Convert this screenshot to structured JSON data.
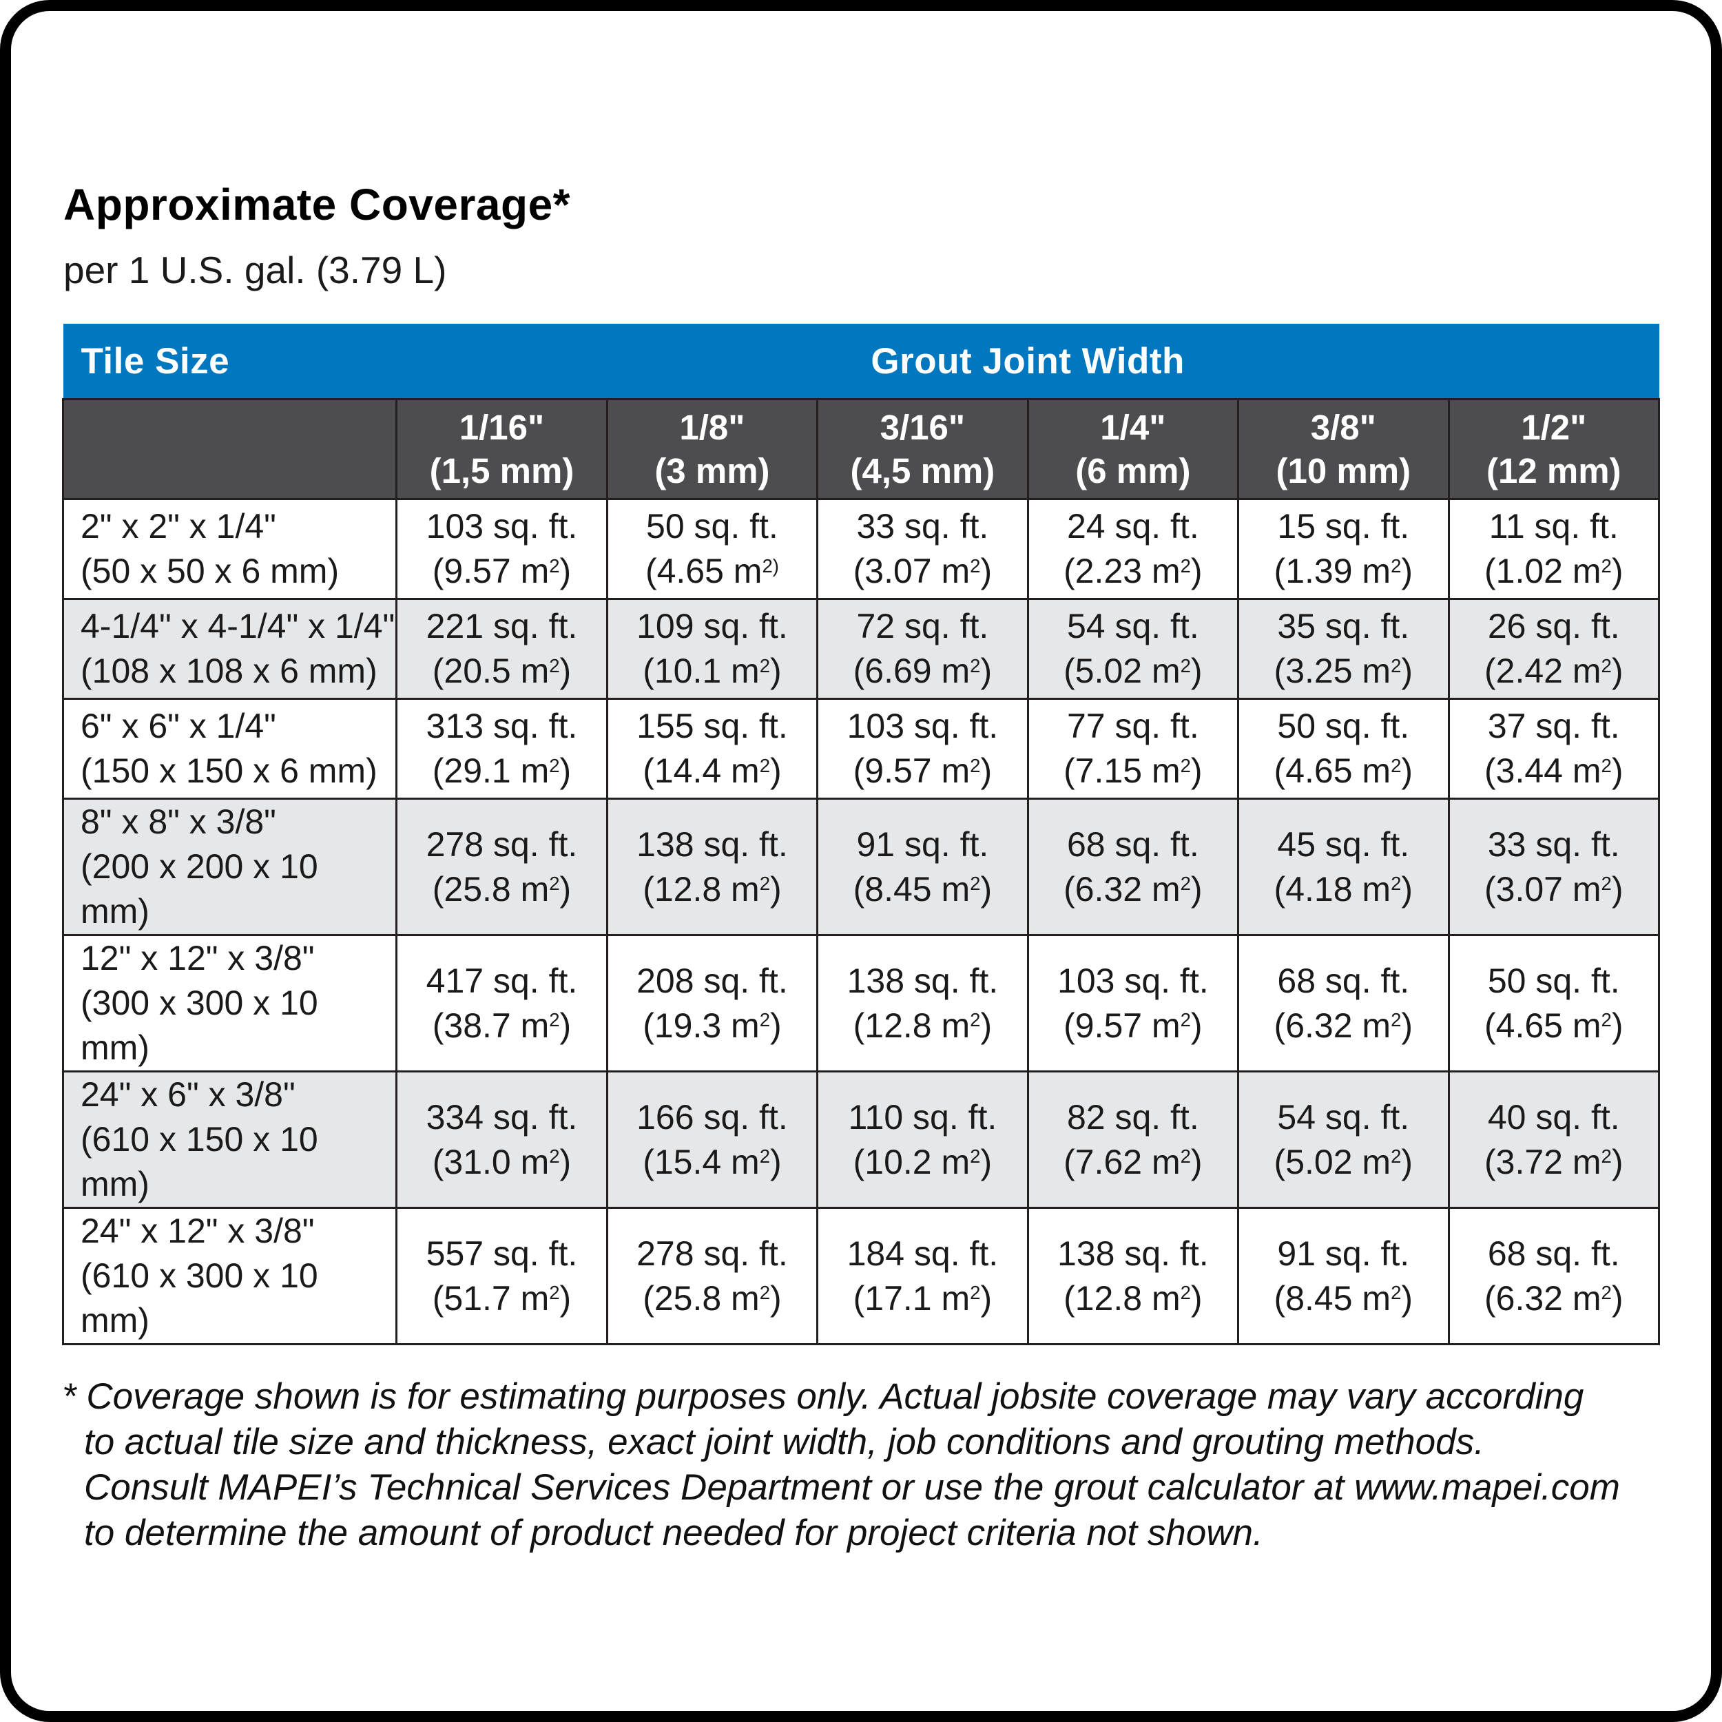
{
  "title": "Approximate Coverage*",
  "subtitle": "per 1 U.S. gal. (3.79 L)",
  "colors": {
    "header_blue": "#0077BE",
    "header_dark_gray": "#4D4D4F",
    "row_alt_gray": "#E6E7E8",
    "border_black": "#231F20"
  },
  "table": {
    "group_headers": {
      "tile_size": "Tile Size",
      "grout_joint_width": "Grout Joint Width"
    },
    "columns": [
      {
        "inch": "1/16\"",
        "mm": "(1,5 mm)"
      },
      {
        "inch": "1/8\"",
        "mm": "(3 mm)"
      },
      {
        "inch": "3/16\"",
        "mm": "(4,5 mm)"
      },
      {
        "inch": "1/4\"",
        "mm": "(6 mm)"
      },
      {
        "inch": "3/8\"",
        "mm": "(10 mm)"
      },
      {
        "inch": "1/2\"",
        "mm": "(12 mm)"
      }
    ],
    "rows": [
      {
        "tile_inch": "2\" x 2\" x 1/4\"",
        "tile_mm": "(50 x 50 x 6 mm)",
        "cells": [
          {
            "sqft": "103 sq. ft.",
            "m2": "9.57"
          },
          {
            "sqft": "50 sq. ft.",
            "m2": "4.65",
            "sup_paren": true
          },
          {
            "sqft": "33 sq. ft.",
            "m2": "3.07"
          },
          {
            "sqft": "24 sq. ft.",
            "m2": "2.23"
          },
          {
            "sqft": "15 sq. ft.",
            "m2": "1.39"
          },
          {
            "sqft": "11 sq. ft.",
            "m2": "1.02"
          }
        ]
      },
      {
        "tile_inch": "4-1/4\" x 4-1/4\" x 1/4\"",
        "tile_mm": "(108 x 108 x 6 mm)",
        "cells": [
          {
            "sqft": "221 sq. ft.",
            "m2": "20.5"
          },
          {
            "sqft": "109 sq. ft.",
            "m2": "10.1"
          },
          {
            "sqft": "72 sq. ft.",
            "m2": "6.69"
          },
          {
            "sqft": "54 sq. ft.",
            "m2": "5.02"
          },
          {
            "sqft": "35 sq. ft.",
            "m2": "3.25"
          },
          {
            "sqft": "26 sq. ft.",
            "m2": "2.42"
          }
        ]
      },
      {
        "tile_inch": "6\" x 6\" x 1/4\"",
        "tile_mm": "(150 x 150 x 6 mm)",
        "cells": [
          {
            "sqft": "313 sq. ft.",
            "m2": "29.1"
          },
          {
            "sqft": "155 sq. ft.",
            "m2": "14.4"
          },
          {
            "sqft": "103 sq. ft.",
            "m2": "9.57"
          },
          {
            "sqft": "77 sq. ft.",
            "m2": "7.15"
          },
          {
            "sqft": "50 sq. ft.",
            "m2": "4.65"
          },
          {
            "sqft": "37 sq. ft.",
            "m2": "3.44"
          }
        ]
      },
      {
        "tile_inch": "8\" x 8\" x 3/8\"",
        "tile_mm": "(200 x 200 x 10 mm)",
        "cells": [
          {
            "sqft": "278 sq. ft.",
            "m2": "25.8"
          },
          {
            "sqft": "138 sq. ft.",
            "m2": "12.8"
          },
          {
            "sqft": "91 sq. ft.",
            "m2": "8.45"
          },
          {
            "sqft": "68 sq. ft.",
            "m2": "6.32"
          },
          {
            "sqft": "45 sq. ft.",
            "m2": "4.18"
          },
          {
            "sqft": "33 sq. ft.",
            "m2": "3.07"
          }
        ]
      },
      {
        "tile_inch": "12\" x 12\" x 3/8\"",
        "tile_mm": "(300 x 300 x 10 mm)",
        "cells": [
          {
            "sqft": "417 sq. ft.",
            "m2": "38.7"
          },
          {
            "sqft": "208 sq. ft.",
            "m2": "19.3"
          },
          {
            "sqft": "138 sq. ft.",
            "m2": "12.8"
          },
          {
            "sqft": "103 sq. ft.",
            "m2": "9.57"
          },
          {
            "sqft": "68 sq. ft.",
            "m2": "6.32"
          },
          {
            "sqft": "50 sq. ft.",
            "m2": "4.65"
          }
        ]
      },
      {
        "tile_inch": "24\" x 6\" x 3/8\"",
        "tile_mm": "(610 x 150 x 10 mm)",
        "cells": [
          {
            "sqft": "334 sq. ft.",
            "m2": "31.0"
          },
          {
            "sqft": "166 sq. ft.",
            "m2": "15.4"
          },
          {
            "sqft": "110 sq. ft.",
            "m2": "10.2"
          },
          {
            "sqft": "82 sq. ft.",
            "m2": "7.62"
          },
          {
            "sqft": "54 sq. ft.",
            "m2": "5.02"
          },
          {
            "sqft": "40 sq. ft.",
            "m2": "3.72"
          }
        ]
      },
      {
        "tile_inch": "24\" x 12\" x 3/8\"",
        "tile_mm": "(610 x 300 x 10 mm)",
        "cells": [
          {
            "sqft": "557 sq. ft.",
            "m2": "51.7"
          },
          {
            "sqft": "278 sq. ft.",
            "m2": "25.8"
          },
          {
            "sqft": "184 sq. ft.",
            "m2": "17.1"
          },
          {
            "sqft": "138 sq. ft.",
            "m2": "12.8"
          },
          {
            "sqft": "91 sq. ft.",
            "m2": "8.45"
          },
          {
            "sqft": "68 sq. ft.",
            "m2": "6.32"
          }
        ]
      }
    ]
  },
  "footnote": {
    "lines": [
      "* Coverage shown is for estimating purposes only. Actual jobsite coverage may vary according",
      "to actual tile size and thickness, exact joint width, job conditions and grouting methods.",
      "Consult MAPEI’s Technical Services Department or use the grout calculator at www.mapei.com",
      "to determine the amount of product needed for project criteria not shown."
    ]
  }
}
